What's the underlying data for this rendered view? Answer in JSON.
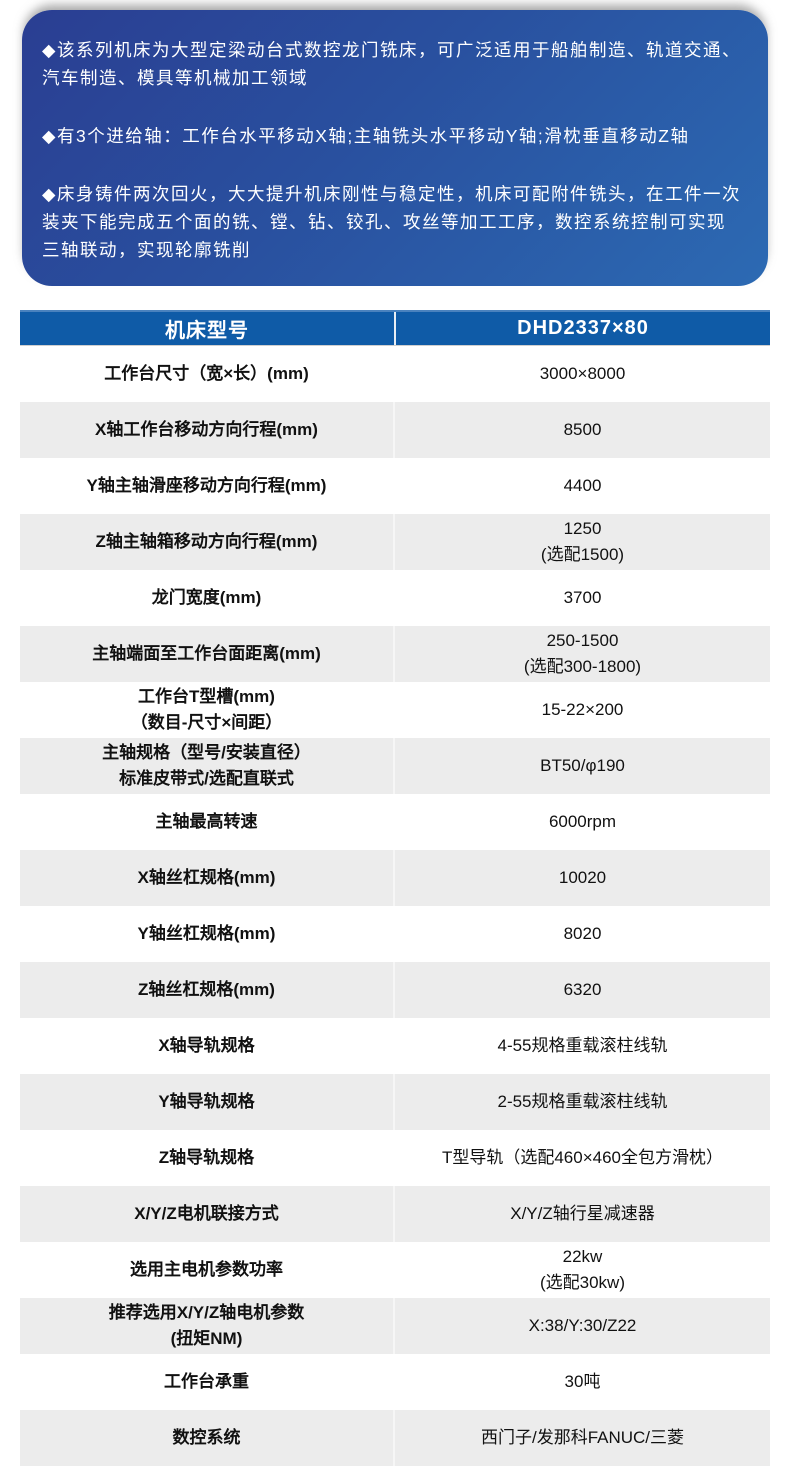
{
  "intro": {
    "bullets": [
      "◆该系列机床为大型定梁动台式数控龙门铣床，可广泛适用于船舶制造、轨道交通、汽车制造、模具等机械加工领域",
      "◆有3个进给轴：工作台水平移动X轴;主轴铣头水平移动Y轴;滑枕垂直移动Z轴",
      "◆床身铸件两次回火，大大提升机床刚性与稳定性，机床可配附件铣头，在工件一次装夹下能完成五个面的铣、镗、钻、铰孔、攻丝等加工工序，数控系统控制可实现三轴联动，实现轮廓铣削"
    ]
  },
  "spec_table": {
    "header": {
      "param_col": "机床型号",
      "model_col": "DHD2337×80"
    },
    "rows": [
      {
        "label": "工作台尺寸（宽×长）(mm)",
        "value": "3000×8000"
      },
      {
        "label": "X轴工作台移动方向行程(mm)",
        "value": "8500"
      },
      {
        "label": "Y轴主轴滑座移动方向行程(mm)",
        "value": "4400"
      },
      {
        "label": "Z轴主轴箱移动方向行程(mm)",
        "value": "1250\n(选配1500)"
      },
      {
        "label": "龙门宽度(mm)",
        "value": "3700"
      },
      {
        "label": "主轴端面至工作台面距离(mm)",
        "value": "250-1500\n(选配300-1800)"
      },
      {
        "label": "工作台T型槽(mm)\n（数目-尺寸×间距）",
        "value": "15-22×200"
      },
      {
        "label": "主轴规格（型号/安装直径）\n标准皮带式/选配直联式",
        "value": "BT50/φ190"
      },
      {
        "label": "主轴最高转速",
        "value": "6000rpm"
      },
      {
        "label": "X轴丝杠规格(mm)",
        "value": "10020"
      },
      {
        "label": "Y轴丝杠规格(mm)",
        "value": "8020"
      },
      {
        "label": "Z轴丝杠规格(mm)",
        "value": "6320"
      },
      {
        "label": "X轴导轨规格",
        "value": "4-55规格重载滚柱线轨"
      },
      {
        "label": "Y轴导轨规格",
        "value": "2-55规格重载滚柱线轨"
      },
      {
        "label": "Z轴导轨规格",
        "value": "T型导轨（选配460×460全包方滑枕）"
      },
      {
        "label": "X/Y/Z电机联接方式",
        "value": "X/Y/Z轴行星减速器"
      },
      {
        "label": "选用主电机参数功率",
        "value": "22kw\n(选配30kw)"
      },
      {
        "label": "推荐选用X/Y/Z轴电机参数\n(扭矩NM)",
        "value": "X:38/Y:30/Z22"
      },
      {
        "label": "工作台承重",
        "value": "30吨"
      },
      {
        "label": "数控系统",
        "value": "西门子/发那科FANUC/三菱"
      }
    ]
  },
  "colors": {
    "header_blue": "#0f5ba7",
    "header_top_highlight": "#4a82be",
    "row_alt_gray": "#ececec",
    "hero_gradient_start": "#2a3e92",
    "hero_gradient_end": "#2c6ab3",
    "text_dark": "#111111",
    "text_light": "#ffffff"
  }
}
